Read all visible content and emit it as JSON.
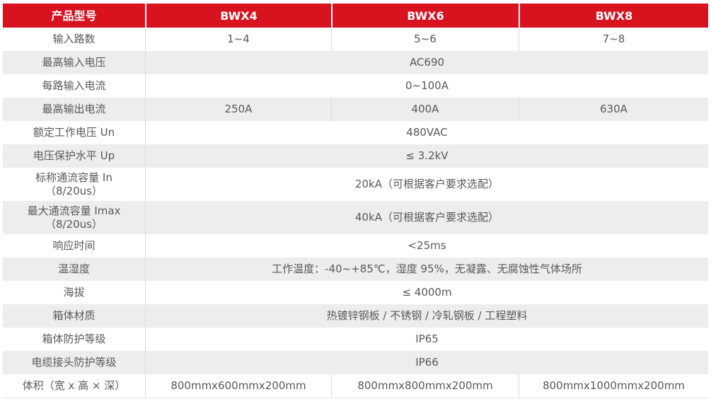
{
  "table": {
    "title_column_header": "产品型号",
    "header": {
      "label": "产品型号",
      "models": [
        "BWX4",
        "BWX6",
        "BWX8"
      ]
    },
    "rows": [
      {
        "label": "输入路数",
        "values": [
          "1~4",
          "5~6",
          "7~8"
        ]
      },
      {
        "label": "最高输入电压",
        "value": "AC690"
      },
      {
        "label": "每路输入电流",
        "value": "0~100A"
      },
      {
        "label": "最高输出电流",
        "values": [
          "250A",
          "400A",
          "630A"
        ]
      },
      {
        "label": "额定工作电压 Un",
        "value": "480VAC"
      },
      {
        "label": "电压保护水平 Up",
        "value": "≤ 3.2kV"
      },
      {
        "label": "标称通流容量 In",
        "label_line2": "（8/20us）",
        "value": "20kA（可根据客户要求选配）"
      },
      {
        "label": "最大通流容量 Imax",
        "label_line2": "（8/20us）",
        "value": "40kA（可根据客户要求选配）"
      },
      {
        "label": "响应时间",
        "value": "<25ms"
      },
      {
        "label": "温湿度",
        "value": "工作温度：-40~+85℃，湿度 95%，无凝露、无腐蚀性气体场所"
      },
      {
        "label": "海拔",
        "value": "≤ 4000m"
      },
      {
        "label": "箱体材质",
        "value": "热镀锌钢板 / 不锈钢 / 冷轧钢板 / 工程塑料"
      },
      {
        "label": "箱体防护等级",
        "value": "IP65"
      },
      {
        "label": "电缆接头防护等级",
        "value": "IP66"
      },
      {
        "label": "体积（宽 x 高 × 深）",
        "values": [
          "800mmx600mmx200mm",
          "800mmx800mmx200mm",
          "800mmx1000mmx200mm"
        ]
      }
    ],
    "colors": {
      "header_bg": "#d8121f",
      "header_text": "#ffffff",
      "stripe_bg": "#ededee",
      "body_text": "#595959",
      "divider": "#dcdcdc"
    }
  }
}
